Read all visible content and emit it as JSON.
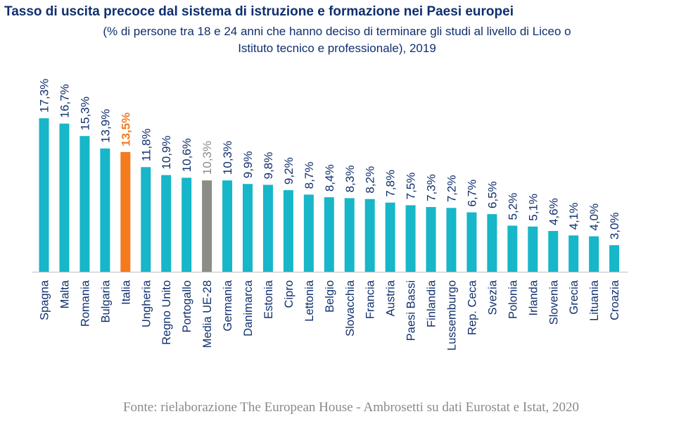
{
  "title": "Tasso di uscita precoce dal sistema di istruzione e formazione nei Paesi europei",
  "subtitle_line1": "(% di persone tra 18 e 24 anni che hanno deciso di terminare gli studi al livello di Liceo o",
  "subtitle_line2": "Istituto tecnico e professionale), 2019",
  "source": "Fonte: rielaborazione The European House - Ambrosetti su dati Eurostat e Istat, 2020",
  "colors": {
    "default": "#17b6c8",
    "highlight": "#f47a1f",
    "average": "#8c8c86",
    "text": "#0f2f6e"
  },
  "chart_data": {
    "type": "bar",
    "categories": [
      "Spagna",
      "Malta",
      "Romania",
      "Bulgaria",
      "Italia",
      "Ungheria",
      "Regno Unito",
      "Portogallo",
      "Media UE-28",
      "Germania",
      "Danimarca",
      "Estonia",
      "Cipro",
      "Lettonia",
      "Belgio",
      "Slovacchia",
      "Francia",
      "Austria",
      "Paesi Bassi",
      "Finlandia",
      "Lussemburgo",
      "Rep. Ceca",
      "Svezia",
      "Polonia",
      "Irlanda",
      "Slovenia",
      "Grecia",
      "Lituania",
      "Croazia"
    ],
    "values": [
      17.3,
      16.7,
      15.3,
      13.9,
      13.5,
      11.8,
      10.9,
      10.6,
      10.3,
      10.3,
      9.9,
      9.8,
      9.2,
      8.7,
      8.4,
      8.3,
      8.2,
      7.8,
      7.5,
      7.3,
      7.2,
      6.7,
      6.5,
      5.2,
      5.1,
      4.6,
      4.1,
      4.0,
      3.0
    ],
    "value_labels": [
      "17,3%",
      "16,7%",
      "15,3%",
      "13,9%",
      "13,5%",
      "11,8%",
      "10,9%",
      "10,6%",
      "10,3%",
      "10,3%",
      "9,9%",
      "9,8%",
      "9,2%",
      "8,7%",
      "8,4%",
      "8,3%",
      "8,2%",
      "7,8%",
      "7,5%",
      "7,3%",
      "7,2%",
      "6,7%",
      "6,5%",
      "5,2%",
      "5,1%",
      "4,6%",
      "4,1%",
      "4,0%",
      "3,0%"
    ],
    "highlight_category": "Italia",
    "average_category": "Media UE-28",
    "ylim": [
      0,
      17.3
    ],
    "grid": false,
    "xlabel": "",
    "ylabel": ""
  }
}
